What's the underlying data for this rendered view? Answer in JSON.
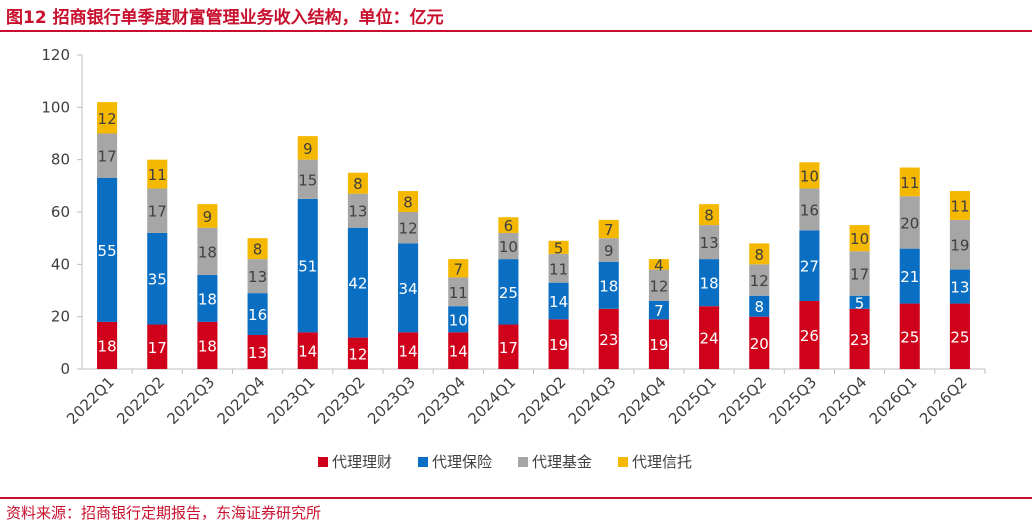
{
  "title": "图12  招商银行单季度财富管理业务收入结构，单位：亿元",
  "source": "资料来源：招商银行定期报告，东海证券研究所",
  "chart_data": {
    "type": "bar",
    "stacked": true,
    "title": "图12  招商银行单季度财富管理业务收入结构，单位：亿元",
    "xlabel": "",
    "ylabel": "",
    "ylim": [
      0,
      120
    ],
    "yticks": [
      0,
      20,
      40,
      60,
      80,
      100,
      120
    ],
    "grid": false,
    "legend": "bottom",
    "categories": [
      "2022Q1",
      "2022Q2",
      "2022Q3",
      "2022Q4",
      "2023Q1",
      "2023Q2",
      "2023Q3",
      "2023Q4",
      "2024Q1",
      "2024Q2",
      "2024Q3",
      "2024Q4",
      "2025Q1",
      "2025Q2",
      "2025Q3",
      "2025Q4",
      "2026Q1",
      "2026Q2"
    ],
    "series": [
      {
        "name": "代理理财",
        "color": "#d0021b",
        "label_color": "#ffffff",
        "values": [
          18,
          17,
          18,
          13,
          14,
          12,
          14,
          14,
          17,
          19,
          23,
          19,
          24,
          20,
          26,
          23,
          25,
          25
        ]
      },
      {
        "name": "代理保险",
        "color": "#0a6fc2",
        "label_color": "#ffffff",
        "values": [
          55,
          35,
          18,
          16,
          51,
          42,
          34,
          10,
          25,
          14,
          18,
          7,
          18,
          8,
          27,
          5,
          21,
          13
        ]
      },
      {
        "name": "代理基金",
        "color": "#a6a6a6",
        "label_color": "#404040",
        "values": [
          17,
          17,
          18,
          13,
          15,
          13,
          12,
          11,
          10,
          11,
          9,
          12,
          13,
          12,
          16,
          17,
          20,
          19
        ]
      },
      {
        "name": "代理信托",
        "color": "#f5b800",
        "label_color": "#404040",
        "values": [
          12,
          11,
          9,
          8,
          9,
          8,
          8,
          7,
          6,
          5,
          7,
          4,
          8,
          8,
          10,
          10,
          11,
          11
        ]
      }
    ]
  }
}
